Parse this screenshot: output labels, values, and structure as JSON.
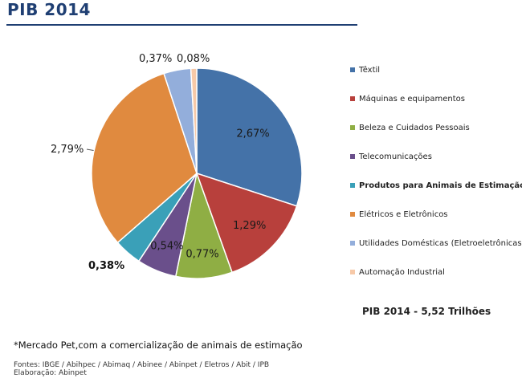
{
  "header": {
    "title": "PIB 2014"
  },
  "chart_data": {
    "type": "pie",
    "title": "PIB 2014",
    "slices": [
      {
        "name": "Têxtil",
        "label": "2,67%",
        "value": 2.67,
        "color": "#4472a8",
        "label_color": "#1a1a1a",
        "bold": false
      },
      {
        "name": "Máquinas e equipamentos",
        "label": "1,29%",
        "value": 1.29,
        "color": "#b8403c",
        "label_color": "#1a1a1a",
        "bold": false
      },
      {
        "name": "Beleza e Cuidados Pessoais",
        "label": "0,77%",
        "value": 0.77,
        "color": "#8fae44",
        "label_color": "#1a1a1a",
        "bold": false
      },
      {
        "name": "Telecomunicações",
        "label": "0,54%",
        "value": 0.54,
        "color": "#6a4f8b",
        "label_color": "#1a1a1a",
        "bold": false
      },
      {
        "name": "Produtos para Animais de Estimação*",
        "label": "0,38%",
        "value": 0.38,
        "color": "#3aa0b8",
        "label_color": "#111111",
        "bold": true
      },
      {
        "name": "Elétricos e Eletrônicos",
        "label": "2,79%",
        "value": 2.79,
        "color": "#e08a3f",
        "label_color": "#1a1a1a",
        "bold": false
      },
      {
        "name": "Utilidades Domésticas (Eletroeletrônicas)",
        "label": "0,37%",
        "value": 0.37,
        "color": "#93aedb",
        "label_color": "#1a1a1a",
        "bold": false
      },
      {
        "name": "Automação Industrial",
        "label": "0,08%",
        "value": 0.08,
        "color": "#f7c9a8",
        "label_color": "#1a1a1a",
        "bold": false
      }
    ],
    "legend_position": "right",
    "total_label": "PIB 2014 - 5,52 Trilhões"
  },
  "footnote": "*Mercado Pet,com a comercialização de animais de estimação",
  "sources": {
    "line1": "Fontes: IBGE / Abihpec / Abimaq / Abinee / Abinpet / Eletros / Abit / IPB",
    "line2": "Elaboração: Abinpet"
  }
}
